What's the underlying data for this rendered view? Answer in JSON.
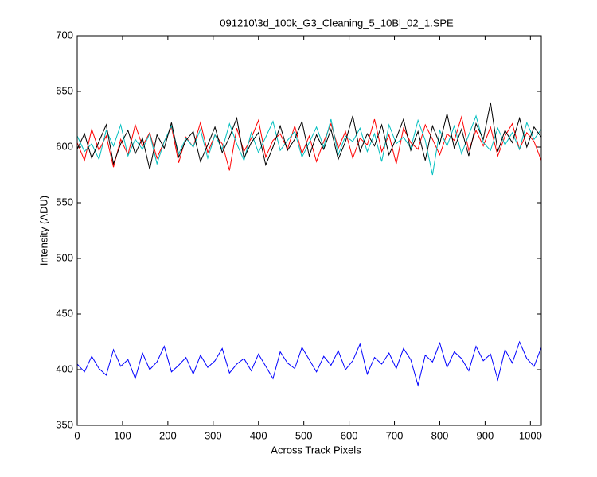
{
  "chart_data": {
    "type": "line",
    "title": "091210\\3d_100k_G3_Cleaning_5_10Bl_02_1.SPE",
    "x_label": "Across Track Pixels",
    "y_label": "Intensity (ADU)",
    "x": [
      0,
      16,
      32,
      48,
      64,
      80,
      96,
      112,
      128,
      144,
      160,
      176,
      192,
      208,
      224,
      240,
      256,
      272,
      288,
      304,
      320,
      336,
      352,
      368,
      384,
      400,
      416,
      432,
      448,
      464,
      480,
      496,
      512,
      528,
      544,
      560,
      576,
      592,
      608,
      624,
      640,
      656,
      672,
      688,
      704,
      720,
      736,
      752,
      768,
      784,
      800,
      816,
      832,
      848,
      864,
      880,
      896,
      912,
      928,
      944,
      960,
      976,
      992,
      1008,
      1024
    ],
    "series": [
      {
        "color": "#ff0000",
        "values": [
          604,
          588,
          616,
          597,
          610,
          582,
          607,
          593,
          620,
          601,
          613,
          590,
          605,
          618,
          586,
          609,
          600,
          622,
          595,
          611,
          603,
          579,
          617,
          596,
          608,
          624,
          591,
          606,
          612,
          598,
          619,
          594,
          610,
          587,
          605,
          621,
          599,
          614,
          590,
          608,
          602,
          625,
          596,
          611,
          585,
          617,
          604,
          598,
          620,
          607,
          593,
          612,
          606,
          627,
          597,
          615,
          601,
          618,
          592,
          610,
          621,
          598,
          613,
          605,
          588
        ]
      },
      {
        "color": "#00bfbf",
        "values": [
          610,
          596,
          603,
          589,
          615,
          601,
          620,
          592,
          607,
          598,
          612,
          585,
          605,
          619,
          594,
          608,
          600,
          616,
          590,
          611,
          598,
          621,
          603,
          588,
          613,
          595,
          609,
          623,
          597,
          606,
          614,
          591,
          604,
          618,
          600,
          625,
          593,
          610,
          605,
          617,
          596,
          612,
          587,
          620,
          603,
          609,
          599,
          624,
          606,
          575,
          615,
          601,
          619,
          594,
          611,
          628,
          604,
          597,
          617,
          602,
          613,
          598,
          622,
          607,
          616
        ]
      },
      {
        "color": "#000000",
        "values": [
          598,
          612,
          590,
          605,
          620,
          585,
          603,
          615,
          594,
          608,
          580,
          611,
          599,
          622,
          591,
          606,
          614,
          587,
          602,
          618,
          595,
          609,
          626,
          590,
          604,
          613,
          584,
          600,
          619,
          597,
          607,
          623,
          592,
          611,
          598,
          616,
          589,
          605,
          628,
          596,
          612,
          601,
          620,
          593,
          608,
          625,
          597,
          614,
          588,
          619,
          603,
          630,
          599,
          616,
          592,
          621,
          607,
          640,
          596,
          615,
          604,
          626,
          600,
          618,
          609
        ]
      },
      {
        "color": "#0000ff",
        "values": [
          405,
          398,
          412,
          401,
          395,
          418,
          403,
          409,
          392,
          415,
          400,
          407,
          421,
          398,
          404,
          411,
          396,
          413,
          402,
          408,
          419,
          397,
          405,
          410,
          399,
          414,
          403,
          392,
          416,
          406,
          401,
          420,
          409,
          398,
          412,
          404,
          417,
          400,
          408,
          423,
          396,
          411,
          405,
          415,
          401,
          419,
          409,
          386,
          413,
          407,
          424,
          402,
          416,
          410,
          399,
          421,
          408,
          414,
          391,
          418,
          406,
          425,
          410,
          403,
          420
        ]
      }
    ],
    "xlim": [
      0,
      1024
    ],
    "ylim": [
      350,
      700
    ],
    "xticks": [
      0,
      100,
      200,
      300,
      400,
      500,
      600,
      700,
      800,
      900,
      1000
    ],
    "yticks": [
      350,
      400,
      450,
      500,
      550,
      600,
      650,
      700
    ],
    "grid": false
  }
}
